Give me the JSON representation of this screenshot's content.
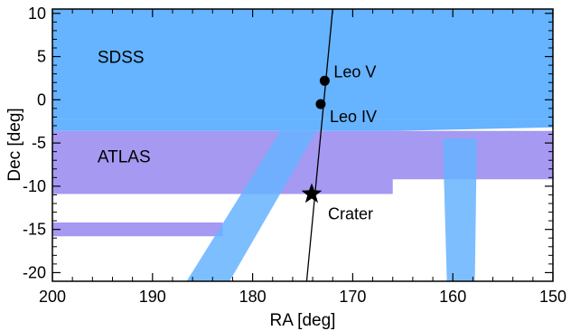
{
  "chart_data": {
    "type": "scatter",
    "title": "",
    "xlabel": "RA [deg]",
    "ylabel": "Dec [deg]",
    "xlim": [
      200,
      150
    ],
    "ylim": [
      -21,
      10.5
    ],
    "x_ticks": [
      200,
      190,
      180,
      170,
      160,
      150
    ],
    "y_ticks": [
      10,
      5,
      0,
      -5,
      -10,
      -15,
      -20
    ],
    "x_tick_labels": [
      "200",
      "190",
      "180",
      "170",
      "160",
      "150"
    ],
    "y_tick_labels": [
      "10",
      "5",
      "0",
      "-5",
      "-10",
      "-15",
      "-20"
    ],
    "regions": [
      {
        "name": "SDSS",
        "color": "#66b3ff"
      },
      {
        "name": "ATLAS",
        "color": "#a699f2"
      }
    ],
    "region_labels": [
      {
        "text": "SDSS",
        "x": 195.5,
        "y": 5.0
      },
      {
        "text": "ATLAS",
        "x": 195.5,
        "y": -6.5
      }
    ],
    "track_line": {
      "points": [
        [
          174.6,
          -21
        ],
        [
          172.0,
          10.5
        ]
      ],
      "color": "#000000"
    },
    "objects": [
      {
        "name": "Leo V",
        "x": 172.8,
        "y": 2.2,
        "marker": "circle",
        "label_dx": 10,
        "label_dy": -10
      },
      {
        "name": "Leo IV",
        "x": 173.2,
        "y": -0.5,
        "marker": "circle",
        "label_dx": 10,
        "label_dy": 14
      },
      {
        "name": "Crater",
        "x": 174.1,
        "y": -10.9,
        "marker": "star",
        "label_dx": 18,
        "label_dy": 22
      }
    ]
  }
}
